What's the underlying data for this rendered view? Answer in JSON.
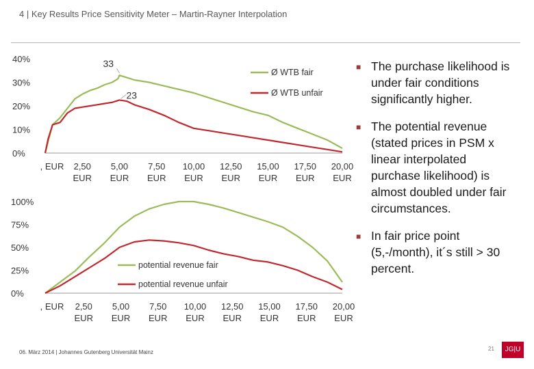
{
  "slide": {
    "title": "4 | Key Results Price Sensitivity Meter – Martin-Rayner Interpolation",
    "bullets": [
      "The purchase likelihood is under fair conditions significantly higher.",
      "The potential revenue (stated prices in PSM x linear interpolated purchase likelihood) is almost doubled under fair circumstances.",
      "In fair price point (5,-/month), it´s still > 30 percent."
    ],
    "footer": "06. März 2014 | Johannes Gutenberg Universität Mainz",
    "page_number": "21",
    "logo_text": "JG|U",
    "colors": {
      "fair": "#9bbb59",
      "unfair": "#c0282d",
      "bullet_marker": "#9a3b3b"
    }
  },
  "chart_data": [
    {
      "type": "line",
      "x_tick_labels": [
        ", EUR",
        "2,50 EUR",
        "5,00 EUR",
        "7,50 EUR",
        "10,00 EUR",
        "12,50 EUR",
        "15,00 EUR",
        "17,50 EUR",
        "20,00 EUR"
      ],
      "x_ticks": [
        0,
        2.5,
        5,
        7.5,
        10,
        12.5,
        15,
        17.5,
        20
      ],
      "xlim": [
        0,
        20
      ],
      "ylim": [
        0,
        40
      ],
      "y_ticks": [
        0,
        10,
        20,
        30,
        40
      ],
      "y_tick_labels": [
        "0%",
        "10%",
        "20%",
        "30%",
        "40%"
      ],
      "legend_position": "top-right",
      "series": [
        {
          "name": "Ø WTB fair",
          "color": "#9bbb59",
          "x": [
            0,
            0.2,
            0.5,
            1,
            1.5,
            2,
            2.5,
            3,
            3.5,
            4,
            4.5,
            4.9,
            5,
            5.5,
            6,
            7,
            8,
            9,
            10,
            11,
            12,
            13,
            14,
            15,
            16,
            17,
            18,
            19,
            20
          ],
          "y": [
            0,
            5,
            12,
            15,
            19,
            23,
            25,
            26.5,
            27.5,
            29,
            30,
            31.5,
            33,
            32,
            31,
            30,
            28.5,
            27,
            25.5,
            23.5,
            21.5,
            19.5,
            17.5,
            16,
            13,
            10.5,
            8,
            5.5,
            2
          ]
        },
        {
          "name": "Ø WTB unfair",
          "color": "#c0282d",
          "x": [
            0,
            0.2,
            0.5,
            1,
            1.5,
            2,
            2.5,
            3,
            3.5,
            4,
            4.5,
            5,
            5.5,
            6,
            7,
            8,
            9,
            10,
            11,
            12,
            13,
            14,
            15,
            16,
            17,
            18,
            19,
            20
          ],
          "y": [
            0,
            6,
            12,
            13,
            17,
            19,
            19.5,
            20,
            20.5,
            21,
            21.5,
            22.5,
            22,
            20.5,
            18.5,
            16,
            13,
            10.5,
            9.5,
            8.5,
            7.5,
            6.5,
            5.5,
            4.5,
            3.5,
            2.5,
            1.5,
            0.5
          ]
        }
      ],
      "annotations": [
        {
          "text": "33",
          "series": "Ø WTB fair",
          "x": 5,
          "y": 33
        },
        {
          "text": "23",
          "series": "Ø WTB unfair",
          "x": 5,
          "y": 22.5
        }
      ]
    },
    {
      "type": "line",
      "x_tick_labels": [
        ", EUR",
        "2,50 EUR",
        "5,00 EUR",
        "7,50 EUR",
        "10,00 EUR",
        "12,50 EUR",
        "15,00 EUR",
        "17,50 EUR",
        "20,00 EUR"
      ],
      "x_ticks": [
        0,
        2.5,
        5,
        7.5,
        10,
        12.5,
        15,
        17.5,
        20
      ],
      "xlim": [
        0,
        20
      ],
      "ylim": [
        0,
        100
      ],
      "y_ticks": [
        0,
        25,
        50,
        75,
        100
      ],
      "y_tick_labels": [
        "0%",
        "25%",
        "50%",
        "75%",
        "100%"
      ],
      "legend_position": "bottom-center",
      "series": [
        {
          "name": "potential revenue fair",
          "color": "#9bbb59",
          "x": [
            0,
            1,
            2,
            3,
            4,
            5,
            6,
            7,
            8,
            9,
            10,
            11,
            12,
            13,
            14,
            15,
            16,
            17,
            18,
            19,
            20
          ],
          "y": [
            0,
            12,
            24,
            40,
            55,
            72,
            84,
            92,
            97,
            100,
            100,
            97,
            93,
            88,
            83,
            78,
            72,
            62,
            50,
            35,
            12
          ]
        },
        {
          "name": "potential revenue unfair",
          "color": "#c0282d",
          "x": [
            0,
            1,
            2,
            3,
            4,
            5,
            6,
            7,
            8,
            9,
            10,
            11,
            12,
            13,
            14,
            15,
            16,
            17,
            18,
            19,
            20
          ],
          "y": [
            0,
            8,
            18,
            28,
            38,
            50,
            56,
            58,
            57,
            55,
            52,
            47,
            43,
            40,
            36,
            34,
            30,
            25,
            18,
            12,
            4
          ]
        }
      ]
    }
  ]
}
